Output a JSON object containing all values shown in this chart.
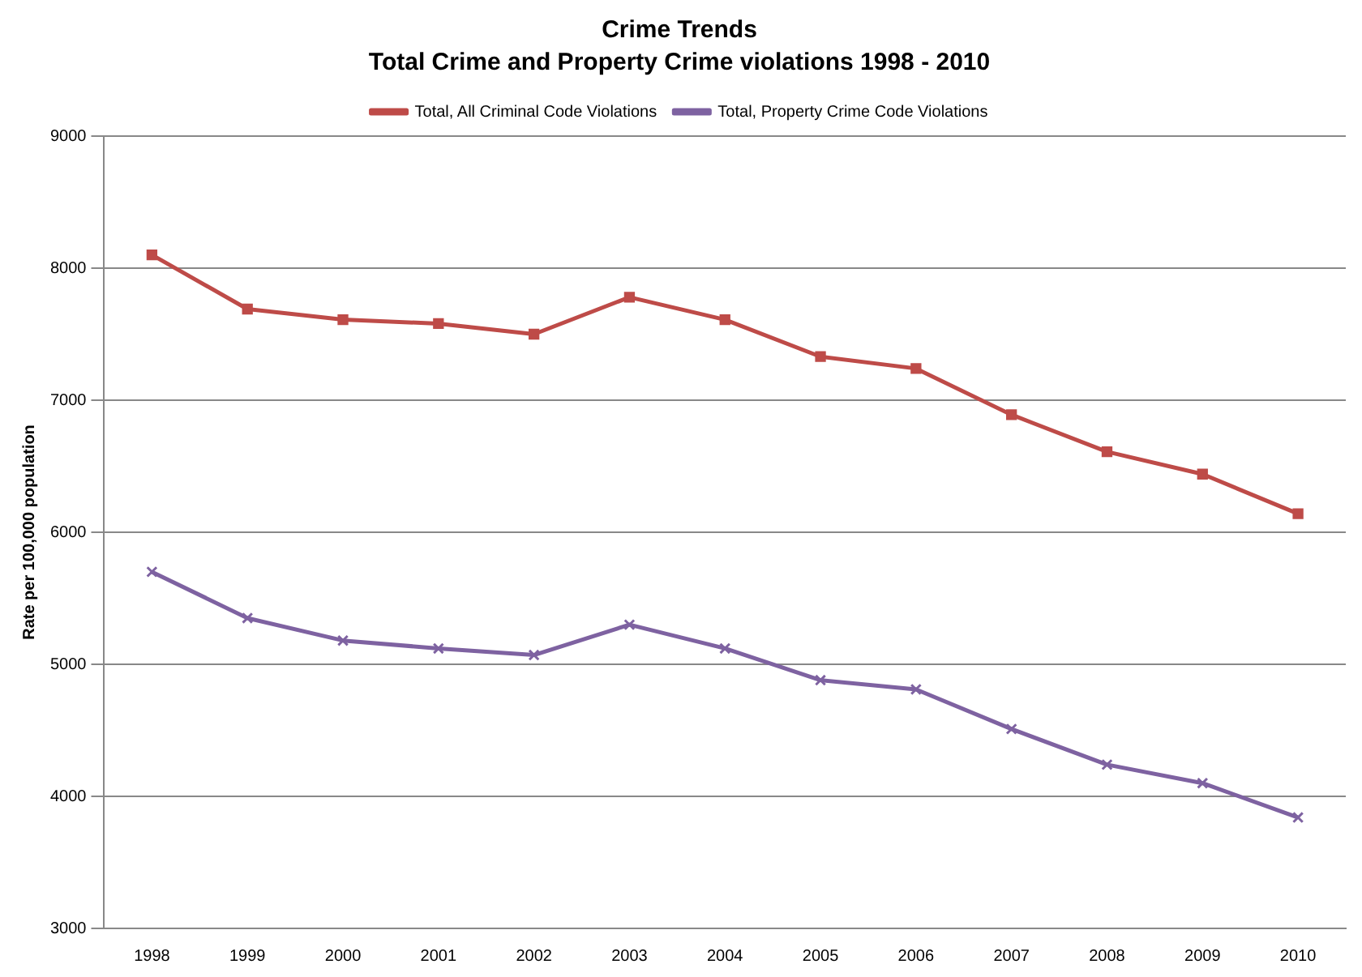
{
  "chart_data": {
    "type": "line",
    "title": "Crime Trends",
    "subtitle": "Total Crime and Property Crime violations 1998 - 2010",
    "ylabel": "Rate per 100,000 population",
    "categories": [
      "1998",
      "1999",
      "2000",
      "2001",
      "2002",
      "2003",
      "2004",
      "2005",
      "2006",
      "2007",
      "2008",
      "2009",
      "2010"
    ],
    "series": [
      {
        "name": "Total, All Criminal Code Violations",
        "color": "#be4b48",
        "marker": "square",
        "values": [
          8100,
          7690,
          7610,
          7580,
          7500,
          7780,
          7610,
          7330,
          7240,
          6890,
          6610,
          6440,
          6140
        ]
      },
      {
        "name": "Total, Property Crime Code Violations",
        "color": "#7e62a1",
        "marker": "cross",
        "values": [
          5700,
          5350,
          5180,
          5120,
          5070,
          5300,
          5120,
          4880,
          4810,
          4510,
          4240,
          4100,
          3840
        ]
      }
    ],
    "ylim": [
      3000,
      9000
    ],
    "yticks": [
      3000,
      4000,
      5000,
      6000,
      7000,
      8000,
      9000
    ],
    "grid": "y",
    "legend": "top",
    "line_style": "solid"
  }
}
